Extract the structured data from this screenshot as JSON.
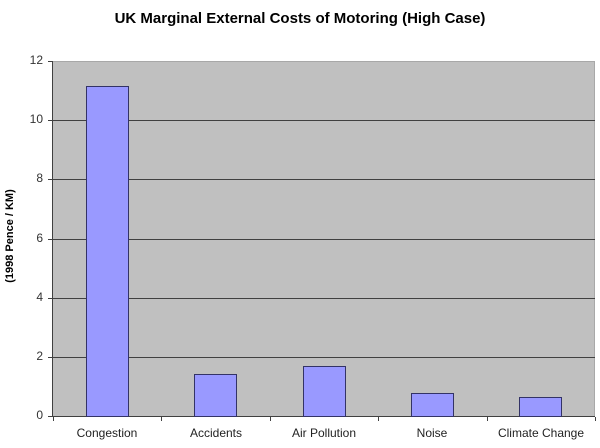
{
  "chart_data": {
    "type": "bar",
    "title": "UK Marginal External Costs of Motoring (High Case)",
    "xlabel": "",
    "ylabel": "(1998 Pence / KM)",
    "categories": [
      "Congestion",
      "Accidents",
      "Air Pollution",
      "Noise",
      "Climate Change"
    ],
    "values": [
      11.15,
      1.42,
      1.69,
      0.78,
      0.64
    ],
    "ylim": [
      0,
      12
    ],
    "yticks": [
      "0",
      "2",
      "4",
      "6",
      "8",
      "10",
      "12"
    ],
    "grid": true,
    "legend": null,
    "colors": {
      "bar": "#9999ff",
      "bar_border": "#333366",
      "plot_bg": "#c0c0c0"
    }
  }
}
